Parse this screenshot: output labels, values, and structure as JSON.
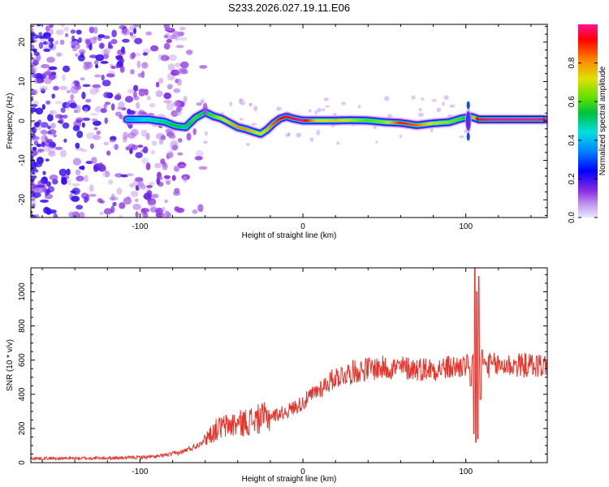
{
  "title": "S233.2026.027.19.11.E06",
  "colors": {
    "snr_line": "#e8332a",
    "frame": "#000000",
    "noise_blob": "#8a2be2"
  },
  "chart_data": [
    {
      "type": "heatmap",
      "name": "spectrogram",
      "xlabel": "Height of straight line (km)",
      "ylabel": "Frequency (Hz)",
      "xlim": [
        -167,
        150
      ],
      "ylim": [
        -24.5,
        24.5
      ],
      "xticks": [
        -100,
        0,
        100
      ],
      "xtick_labels": [
        "-100",
        "0",
        "100"
      ],
      "yticks": [
        -20,
        -10,
        0,
        10,
        20
      ],
      "ytick_labels": [
        "-20",
        "-10",
        "0",
        "10",
        "20"
      ],
      "ridge": {
        "x": [
          -108,
          -95,
          -85,
          -78,
          -72,
          -66,
          -60,
          -55,
          -50,
          -45,
          -40,
          -35,
          -30,
          -26,
          -22,
          -18,
          -14,
          -10,
          -6,
          0,
          10,
          20,
          30,
          40,
          50,
          60,
          70,
          80,
          90,
          97,
          103,
          108,
          115,
          150
        ],
        "freq": [
          0.4,
          0.4,
          -0.2,
          -1.3,
          -1.6,
          0.8,
          2.2,
          1.2,
          0.6,
          -0.5,
          -1.6,
          -2.1,
          -2.8,
          -3.3,
          -2.2,
          -0.6,
          0.6,
          1.1,
          0.6,
          0.1,
          0.1,
          0.1,
          0.2,
          0.1,
          -0.3,
          -0.5,
          -1.1,
          -0.6,
          -0.3,
          0.6,
          1.1,
          0.4,
          0.4,
          0.4
        ],
        "amplitude": [
          0.35,
          0.45,
          0.5,
          0.55,
          0.5,
          0.6,
          0.55,
          0.6,
          0.7,
          0.75,
          0.8,
          0.8,
          0.75,
          0.7,
          0.75,
          0.85,
          0.9,
          0.95,
          0.95,
          1.0,
          0.7,
          0.75,
          0.7,
          0.6,
          0.65,
          0.9,
          0.85,
          0.7,
          0.65,
          0.6,
          0.5,
          0.95,
          1.0,
          1.0
        ]
      },
      "colorbar": {
        "label": "Normalized spectral amplitude",
        "range": [
          0,
          1
        ],
        "ticks": [
          0.0,
          0.2,
          0.4,
          0.6,
          0.8
        ],
        "tick_labels": [
          "0.0",
          "0.2",
          "0.4",
          "0.6",
          "0.8"
        ]
      }
    },
    {
      "type": "line",
      "name": "snr",
      "xlabel": "Height of straight line (km)",
      "ylabel": "SNR (10 * v/v)",
      "xlim": [
        -167,
        150
      ],
      "ylim": [
        0,
        1140
      ],
      "xticks": [
        -100,
        0,
        100
      ],
      "xtick_labels": [
        "-100",
        "0",
        "100"
      ],
      "yticks": [
        0,
        200,
        400,
        600,
        800,
        1000
      ],
      "ytick_labels": [
        "0",
        "200",
        "400",
        "600",
        "800",
        "1000"
      ],
      "envelope": {
        "x": [
          -167,
          -140,
          -110,
          -90,
          -75,
          -65,
          -58,
          -52,
          -45,
          -38,
          -30,
          -20,
          -10,
          0,
          10,
          20,
          30,
          40,
          50,
          60,
          70,
          80,
          90,
          95,
          100,
          150
        ],
        "y": [
          25,
          25,
          28,
          35,
          60,
          100,
          160,
          200,
          220,
          230,
          250,
          270,
          300,
          350,
          430,
          500,
          530,
          550,
          555,
          555,
          550,
          550,
          555,
          560,
          570,
          570
        ]
      },
      "spikes": [
        {
          "x": 103,
          "y": 450
        },
        {
          "x": 104,
          "y": 620
        },
        {
          "x": 105,
          "y": 170
        },
        {
          "x": 105.5,
          "y": 1140
        },
        {
          "x": 106.2,
          "y": 120
        },
        {
          "x": 106.8,
          "y": 1000
        },
        {
          "x": 107.3,
          "y": 140
        },
        {
          "x": 108,
          "y": 1090
        },
        {
          "x": 109,
          "y": 370
        },
        {
          "x": 110,
          "y": 660
        }
      ]
    }
  ]
}
